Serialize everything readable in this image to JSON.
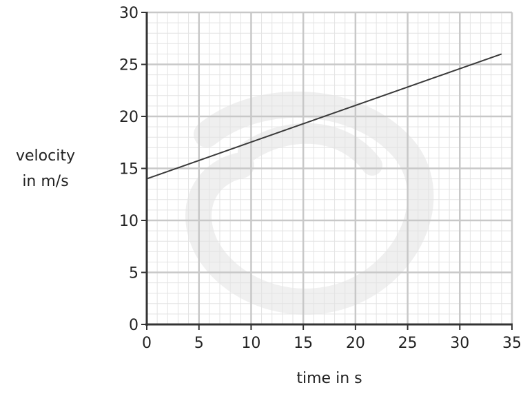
{
  "chart_data": {
    "type": "line",
    "title": "",
    "xlabel": "time in s",
    "ylabel_lines": [
      "velocity",
      "in m/s"
    ],
    "xlim": [
      0,
      35
    ],
    "ylim": [
      0,
      30
    ],
    "xticks": [
      0,
      5,
      10,
      15,
      20,
      25,
      30,
      35
    ],
    "yticks": [
      0,
      5,
      10,
      15,
      20,
      25,
      30
    ],
    "grid": true,
    "grid_minor_step": 1,
    "series": [
      {
        "x": [
          0,
          34
        ],
        "y": [
          14,
          26
        ]
      }
    ],
    "colors": {
      "line": "#3a3a3a",
      "axis": "#333333",
      "grid_major": "#c8c8c8",
      "grid_minor": "#e3e3e3"
    }
  }
}
